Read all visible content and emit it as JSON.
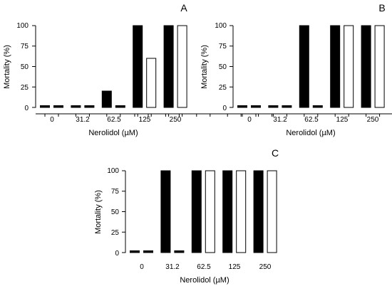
{
  "chart_data": [
    {
      "type": "bar",
      "panel_label": "A",
      "categories": [
        "0",
        "31.2",
        "62.5",
        "125",
        "250"
      ],
      "series": [
        {
          "values": [
            0,
            0,
            20,
            100,
            100
          ],
          "fill": "#000000"
        },
        {
          "values": [
            0,
            0,
            0,
            60,
            100
          ],
          "fill": "#ffffff"
        }
      ],
      "xlabel": "Nerolidol (µM)",
      "ylabel": "Mortality (%)",
      "yticks": [
        "0",
        "25",
        "50",
        "75",
        "100"
      ],
      "ylim": [
        0,
        100
      ]
    },
    {
      "type": "bar",
      "panel_label": "B",
      "categories": [
        "0",
        "31.2",
        "62.5",
        "125",
        "250"
      ],
      "series": [
        {
          "values": [
            0,
            0,
            100,
            100,
            100
          ],
          "fill": "#000000"
        },
        {
          "values": [
            0,
            0,
            0,
            100,
            100
          ],
          "fill": "#ffffff"
        }
      ],
      "xlabel": "Nerolidol (µM)",
      "ylabel": "Mortality (%)",
      "yticks": [
        "0",
        "25",
        "50",
        "75",
        "100"
      ],
      "ylim": [
        0,
        100
      ]
    },
    {
      "type": "bar",
      "panel_label": "C",
      "categories": [
        "0",
        "31.2",
        "62.5",
        "125",
        "250"
      ],
      "series": [
        {
          "values": [
            0,
            100,
            100,
            100,
            100
          ],
          "fill": "#000000"
        },
        {
          "values": [
            0,
            0,
            100,
            100,
            100
          ],
          "fill": "#ffffff"
        }
      ],
      "xlabel": "Nerolidol (µM)",
      "ylabel": "Mortality (%)",
      "yticks": [
        "0",
        "25",
        "50",
        "75",
        "100"
      ],
      "ylim": [
        0,
        100
      ]
    }
  ]
}
